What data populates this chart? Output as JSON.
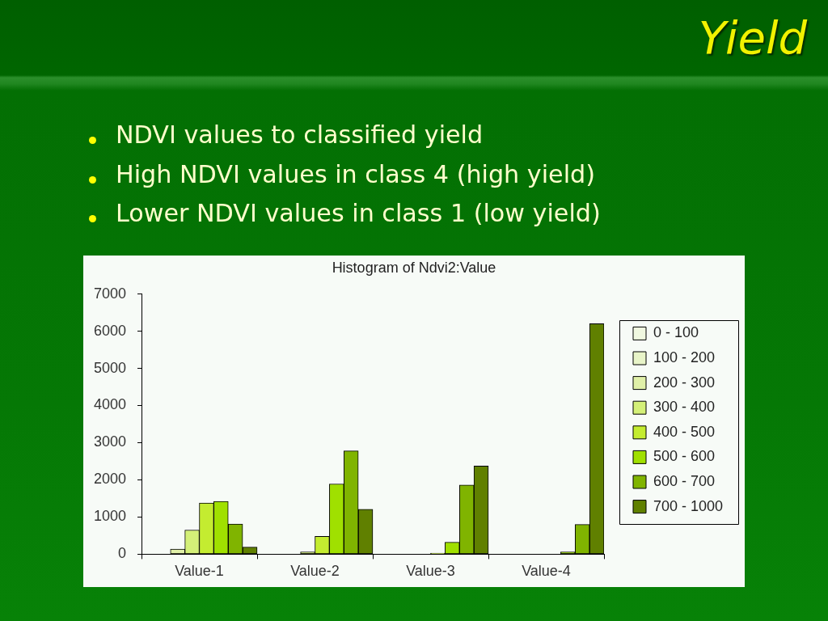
{
  "chart_data": {
    "type": "bar",
    "title": "Yield",
    "subtitle": "Histogram of Ndvi2:Value",
    "annotations": [
      "NDVI values to classified yield",
      "High NDVI values in class 4 (high yield)",
      "Lower NDVI values in class 1 (low yield)"
    ],
    "categories": [
      "Value-1",
      "Value-2",
      "Value-3",
      "Value-4"
    ],
    "series": [
      {
        "name": "0 - 100",
        "color": "#f0f8e0",
        "values": [
          0,
          0,
          0,
          0
        ]
      },
      {
        "name": "100 - 200",
        "color": "#e8f4c8",
        "values": [
          0,
          0,
          0,
          0
        ]
      },
      {
        "name": "200 - 300",
        "color": "#e0f0a8",
        "values": [
          140,
          0,
          0,
          0
        ]
      },
      {
        "name": "300 - 400",
        "color": "#d4f078",
        "values": [
          650,
          60,
          0,
          0
        ]
      },
      {
        "name": "400 - 500",
        "color": "#c4ec30",
        "values": [
          1380,
          480,
          30,
          0
        ]
      },
      {
        "name": "500 - 600",
        "color": "#a0e000",
        "values": [
          1420,
          1890,
          320,
          60
        ]
      },
      {
        "name": "600 - 700",
        "color": "#80b400",
        "values": [
          810,
          2780,
          1860,
          800
        ]
      },
      {
        "name": "700 - 1000",
        "color": "#608000",
        "values": [
          190,
          1210,
          2370,
          6200
        ]
      }
    ],
    "ylim": [
      0,
      7000
    ],
    "yticks": [
      0,
      1000,
      2000,
      3000,
      4000,
      5000,
      6000,
      7000
    ],
    "grid": false,
    "legend": "right"
  }
}
